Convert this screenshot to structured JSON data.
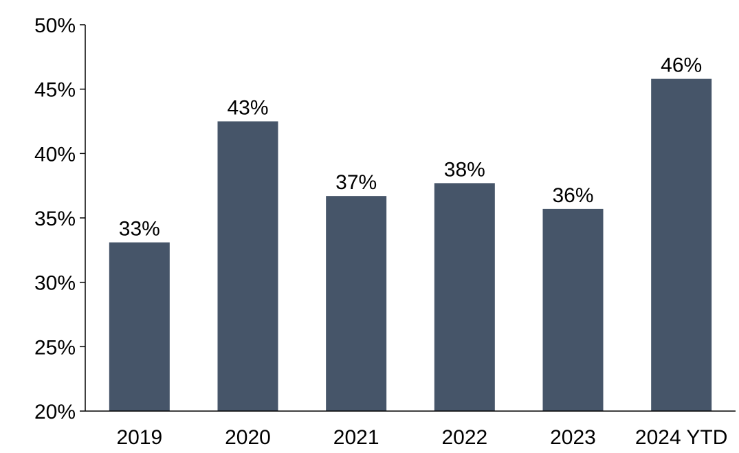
{
  "chart_data": {
    "type": "bar",
    "categories": [
      "2019",
      "2020",
      "2021",
      "2022",
      "2023",
      "2024 YTD"
    ],
    "values": [
      33.1,
      42.5,
      36.7,
      37.7,
      35.7,
      45.8
    ],
    "data_labels": [
      "33%",
      "43%",
      "37%",
      "38%",
      "36%",
      "46%"
    ],
    "ylim": [
      20,
      50
    ],
    "yticks": [
      20,
      25,
      30,
      35,
      40,
      45,
      50
    ],
    "ytick_labels": [
      "20%",
      "25%",
      "30%",
      "35%",
      "40%",
      "45%",
      "50%"
    ],
    "grid": false,
    "bar_color": "#465569",
    "axis_color": "#000000"
  }
}
